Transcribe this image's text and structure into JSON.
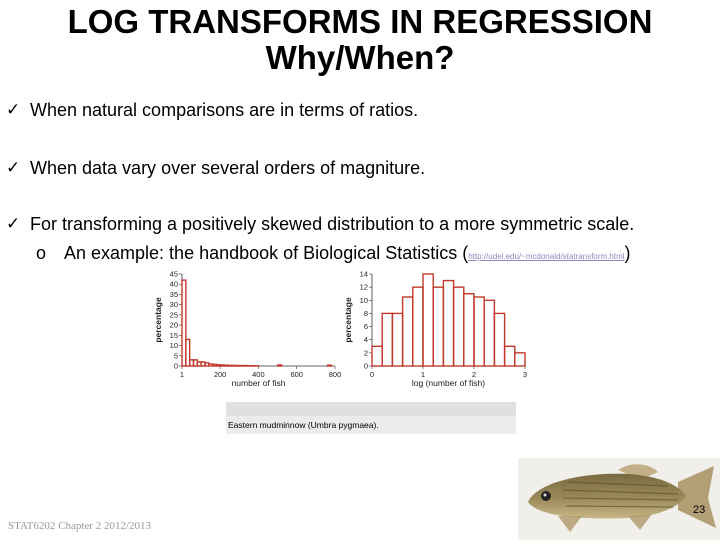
{
  "slide": {
    "title_line1": "LOG TRANSFORMS IN REGRESSION",
    "title_line2": "Why/When?",
    "bullets": [
      "When natural comparisons are in terms of ratios.",
      "When data vary over several orders of magniture.",
      "For transforming a positively skewed distribution to a more symmetric scale."
    ],
    "check_glyph": "✓",
    "sub_marker": "o",
    "sub_text": "An example: the handbook of Biological Statistics (",
    "sub_link": "http://udel.edu/~mcdonald/statransform.html",
    "sub_close": ")",
    "caption": "Eastern mudminnow (Umbra pygmaea).",
    "page_number": "23",
    "footer": "STAT6202 Chapter 2 2012/2013"
  },
  "colors": {
    "bars": "#c0392b",
    "axis": "#333333"
  },
  "chart_data": [
    {
      "type": "bar",
      "ylabel": "percentage",
      "xlabel": "number of fish",
      "yticks": [
        "45",
        "40",
        "35",
        "30",
        "25",
        "20",
        "15",
        "10",
        "5",
        "0"
      ],
      "xticks": [
        "1",
        "200",
        "400",
        "600",
        "800"
      ],
      "xlim": [
        1,
        800
      ],
      "ylim": [
        0,
        45
      ],
      "bin_width": 20,
      "values": [
        42,
        13,
        3,
        3,
        2,
        2,
        1.5,
        1,
        0.8,
        0.6,
        0.5,
        0.4,
        0.3,
        0.3,
        0.2,
        0.2,
        0.2,
        0.1,
        0.1,
        0.1,
        0,
        0,
        0,
        0,
        0,
        0.5,
        0,
        0,
        0,
        0,
        0,
        0,
        0,
        0,
        0,
        0,
        0,
        0,
        0.4,
        0
      ]
    },
    {
      "type": "bar",
      "ylabel": "percentage",
      "xlabel": "log (number of fish)",
      "yticks": [
        "14",
        "12",
        "10",
        "8",
        "6",
        "4",
        "2",
        "0"
      ],
      "xticks": [
        "0",
        "1",
        "2",
        "3"
      ],
      "xlim": [
        0,
        3
      ],
      "ylim": [
        0,
        14
      ],
      "bin_width": 0.2,
      "values": [
        3,
        8,
        8,
        10.5,
        12,
        14,
        12,
        13,
        12,
        11,
        10.5,
        10,
        8,
        3,
        2
      ]
    }
  ]
}
